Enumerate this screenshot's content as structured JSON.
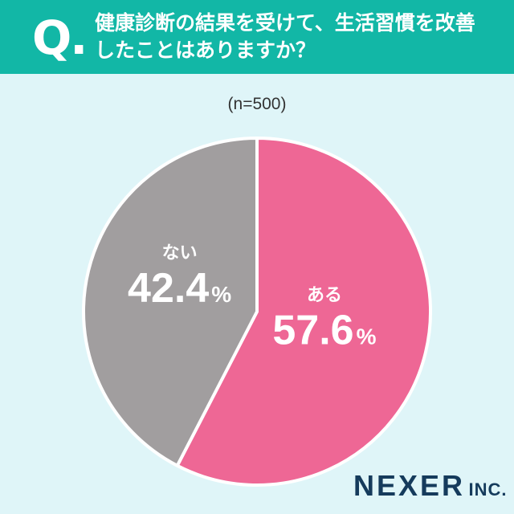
{
  "header": {
    "q_mark": "Q.",
    "question": "健康診断の結果を受けて、生活習慣を改善\nしたことはありますか？"
  },
  "sample_size": "(n=500)",
  "brand": {
    "name": "NEXER",
    "suffix": "INC."
  },
  "colors": {
    "header": "#12b7a6",
    "background": "#dff5f8",
    "aru": "#ee6795",
    "nai": "#a19e9f"
  },
  "chart_data": {
    "type": "pie",
    "title": "",
    "slices": [
      {
        "label": "ある",
        "value": 57.6,
        "value_text": "57.6",
        "unit": "%",
        "color": "#ee6795"
      },
      {
        "label": "ない",
        "value": 42.4,
        "value_text": "42.4",
        "unit": "%",
        "color": "#a19e9f"
      }
    ],
    "start": "12 o'clock",
    "direction": "clockwise"
  }
}
